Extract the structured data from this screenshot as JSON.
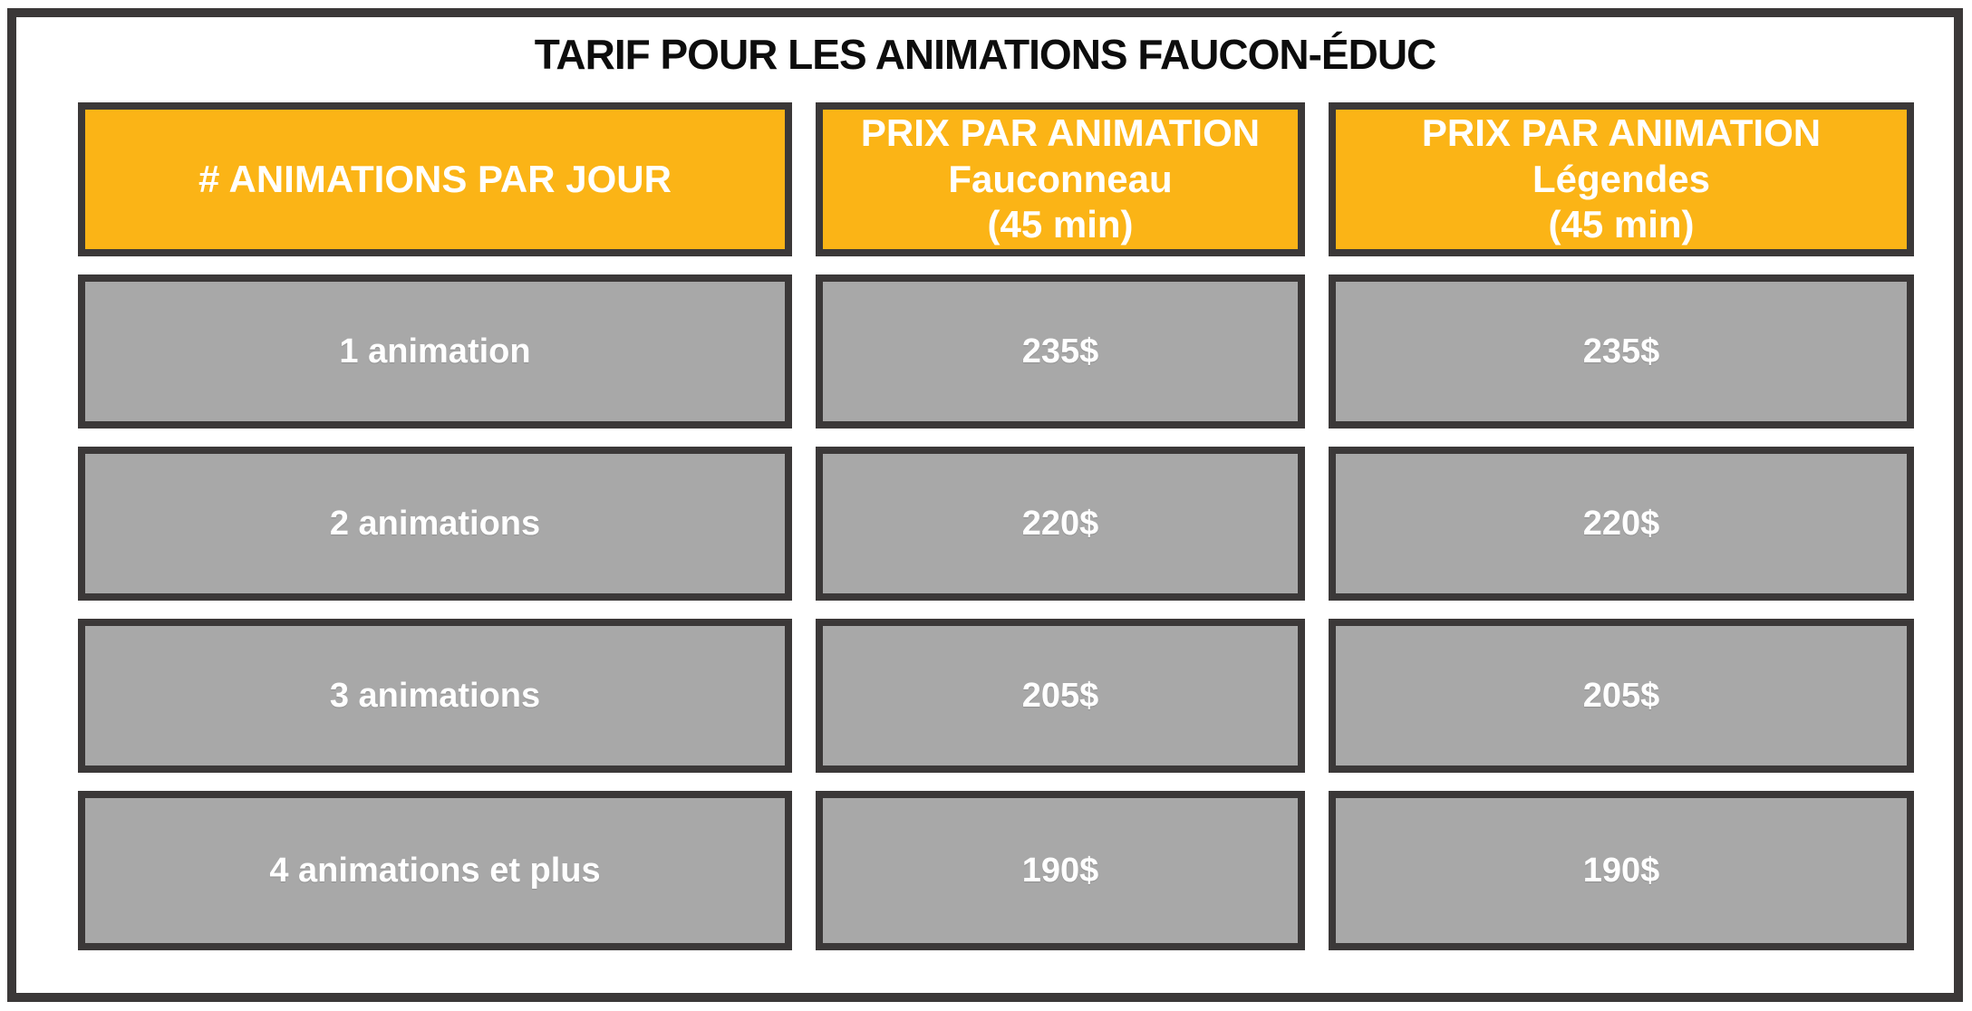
{
  "title": "TARIF POUR LES ANIMATIONS FAUCON-ÉDUC",
  "colors": {
    "gold": "#FBB416",
    "gray": "#A8A8A8",
    "border_dark": "#3B3838",
    "title_color": "#0D0D0D",
    "text_white": "#FFFFFF",
    "page_bg": "#FFFFFF"
  },
  "table": {
    "headers": [
      {
        "lines": [
          "# ANIMATIONS PAR JOUR"
        ]
      },
      {
        "lines": [
          "PRIX PAR ANIMATION",
          "Fauconneau",
          "(45 min)"
        ]
      },
      {
        "lines": [
          "PRIX PAR ANIMATION",
          "Légendes",
          "(45 min)"
        ]
      }
    ],
    "rows": [
      {
        "animations": "1 animation",
        "prices": [
          "235$",
          "235$"
        ]
      },
      {
        "animations": "2 animations",
        "prices": [
          "220$",
          "220$"
        ]
      },
      {
        "animations": "3 animations",
        "prices": [
          "205$",
          "205$"
        ]
      },
      {
        "animations": "4 animations et plus",
        "prices": [
          "190$",
          "190$"
        ]
      }
    ]
  }
}
